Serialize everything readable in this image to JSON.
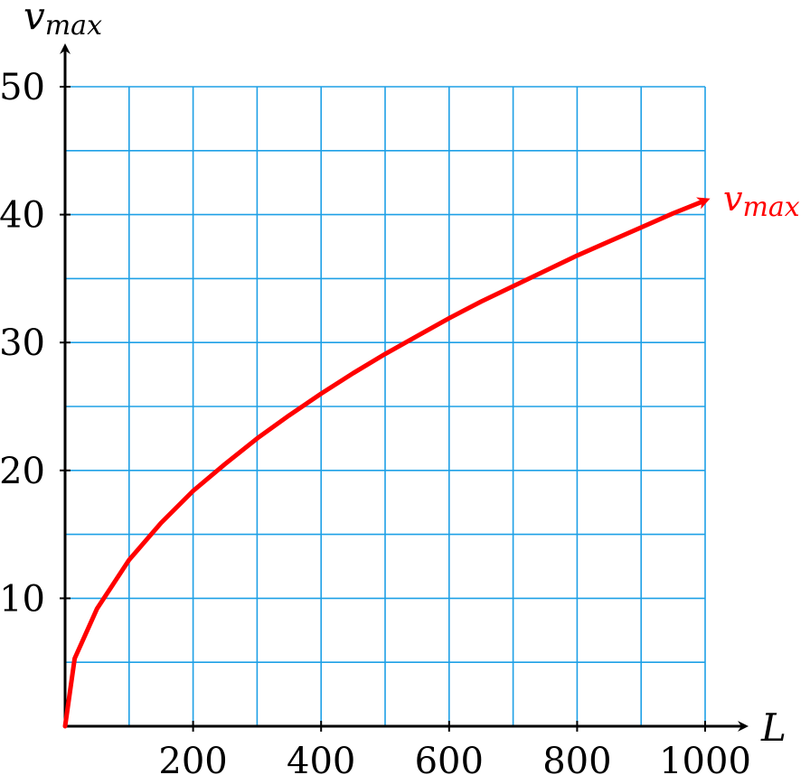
{
  "chart_data": {
    "type": "line",
    "xlabel": "L",
    "ylabel": {
      "main": "v",
      "sub": "max"
    },
    "xlim": [
      0,
      1000
    ],
    "ylim": [
      0,
      50
    ],
    "xticks": [
      200,
      400,
      600,
      800,
      1000
    ],
    "yticks": [
      10,
      20,
      30,
      40,
      50
    ],
    "grid": {
      "x_step": 100,
      "y_step": 5
    },
    "grid_color": "#1ea0e6",
    "series": [
      {
        "label": {
          "main": "v",
          "sub": "max"
        },
        "color": "#ff0000",
        "x": [
          0,
          15,
          50,
          100,
          150,
          200,
          250,
          300,
          350,
          400,
          450,
          500,
          550,
          600,
          650,
          700,
          750,
          800,
          850,
          900,
          950,
          1000
        ],
        "y": [
          0,
          5.3,
          9.2,
          13.0,
          15.9,
          18.4,
          20.5,
          22.5,
          24.3,
          26.0,
          27.6,
          29.1,
          30.5,
          31.9,
          33.2,
          34.4,
          35.6,
          36.8,
          37.9,
          39.0,
          40.1,
          41.1
        ]
      }
    ]
  }
}
